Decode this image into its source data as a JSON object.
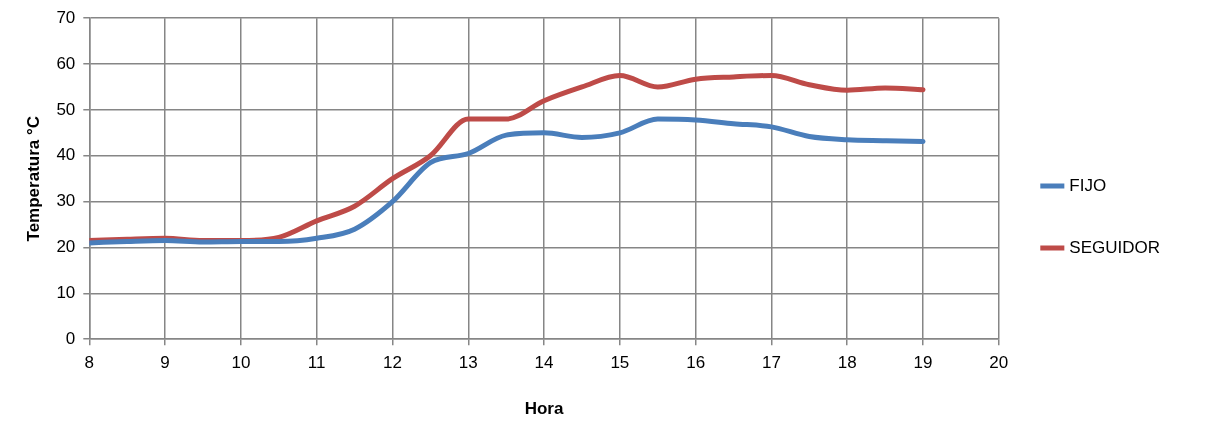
{
  "chart_data": {
    "type": "line",
    "xlabel": "Hora",
    "ylabel": "Temperatura °C",
    "x": [
      8,
      8.5,
      9,
      9.5,
      10,
      10.5,
      11,
      11.5,
      12,
      12.5,
      13,
      13.5,
      14,
      14.5,
      15,
      15.5,
      16,
      16.5,
      17,
      17.5,
      18,
      18.5,
      19
    ],
    "series": [
      {
        "name": "FIJO",
        "color": "#4a7ebb",
        "values": [
          21,
          21.3,
          21.5,
          21.2,
          21.3,
          21.3,
          22,
          24,
          30,
          38.5,
          40.5,
          44.5,
          45,
          44,
          45,
          48,
          47.8,
          47,
          46.3,
          44.2,
          43.5,
          43.3,
          43.1
        ]
      },
      {
        "name": "SEGUIDOR",
        "color": "#be4b48",
        "values": [
          21.5,
          21.8,
          22,
          21.5,
          21.5,
          22.2,
          25.8,
          29,
          35,
          40,
          48,
          48,
          52,
          55,
          57.5,
          55,
          56.7,
          57.2,
          57.5,
          55.5,
          54.3,
          54.8,
          54.4
        ]
      }
    ],
    "xlim": [
      8,
      20
    ],
    "xticks": [
      8,
      9,
      10,
      11,
      12,
      13,
      14,
      15,
      16,
      17,
      18,
      19,
      20
    ],
    "ylim": [
      0,
      70
    ],
    "yticks": [
      0,
      10,
      20,
      30,
      40,
      50,
      60,
      70
    ],
    "grid": true,
    "legend": "right",
    "marker": "none",
    "line_style": "solid"
  }
}
